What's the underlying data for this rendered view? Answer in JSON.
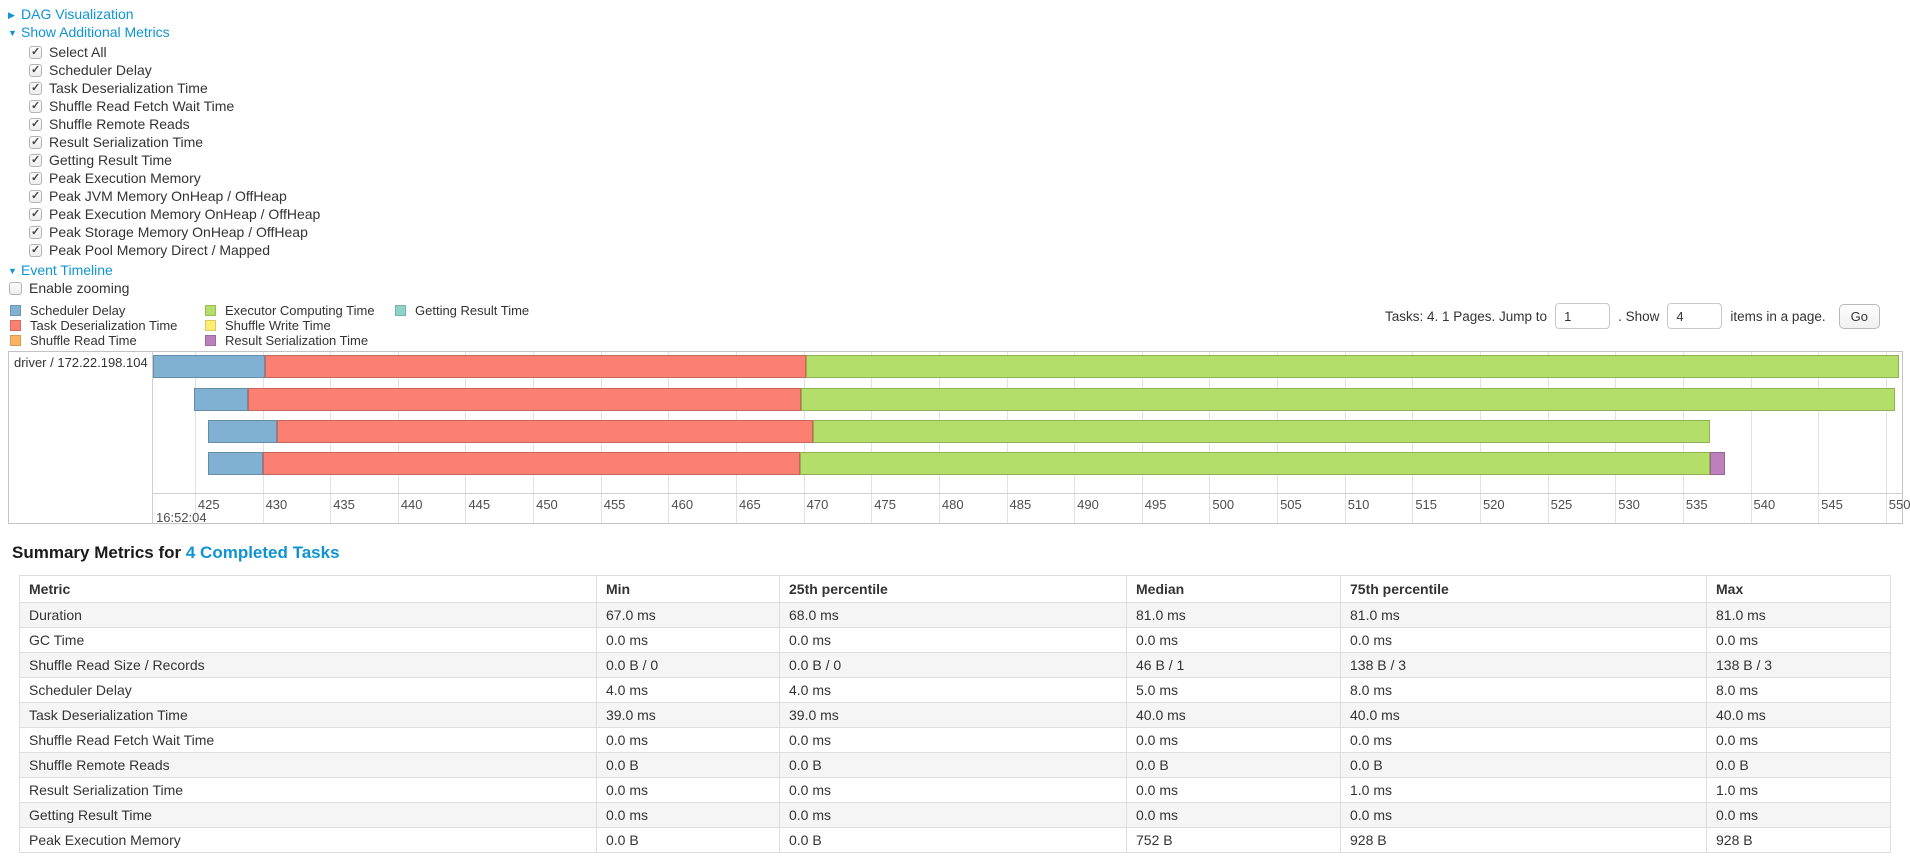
{
  "icons": {
    "collapsed": "▶",
    "expanded": "▼"
  },
  "toggles": {
    "dag_label": "DAG Visualization",
    "metrics_label": "Show Additional Metrics",
    "timeline_label": "Event Timeline",
    "enable_zooming_label": "Enable zooming"
  },
  "metrics_menu": {
    "items": [
      {
        "label": "Select All",
        "checked": true
      },
      {
        "label": "Scheduler Delay",
        "checked": true
      },
      {
        "label": "Task Deserialization Time",
        "checked": true
      },
      {
        "label": "Shuffle Read Fetch Wait Time",
        "checked": true
      },
      {
        "label": "Shuffle Remote Reads",
        "checked": true
      },
      {
        "label": "Result Serialization Time",
        "checked": true
      },
      {
        "label": "Getting Result Time",
        "checked": true
      },
      {
        "label": "Peak Execution Memory",
        "checked": true
      },
      {
        "label": "Peak JVM Memory OnHeap / OffHeap",
        "checked": true
      },
      {
        "label": "Peak Execution Memory OnHeap / OffHeap",
        "checked": true
      },
      {
        "label": "Peak Storage Memory OnHeap / OffHeap",
        "checked": true
      },
      {
        "label": "Peak Pool Memory Direct / Mapped",
        "checked": true
      }
    ]
  },
  "legend": {
    "columns": [
      [
        {
          "label": "Scheduler Delay",
          "color": "#80B1D3"
        },
        {
          "label": "Task Deserialization Time",
          "color": "#FB8072"
        },
        {
          "label": "Shuffle Read Time",
          "color": "#FDB462"
        }
      ],
      [
        {
          "label": "Executor Computing Time",
          "color": "#B3DE69"
        },
        {
          "label": "Shuffle Write Time",
          "color": "#FFED6F"
        },
        {
          "label": "Result Serialization Time",
          "color": "#BC80BD"
        }
      ],
      [
        {
          "label": "Getting Result Time",
          "color": "#8DD3C7"
        }
      ]
    ]
  },
  "pagination": {
    "prefix": "Tasks: 4. 1 Pages. Jump to",
    "jump_value": "1",
    "mid": ". Show",
    "show_value": "4",
    "suffix": "items in a page.",
    "go_label": "Go"
  },
  "chart_data": {
    "type": "timeline",
    "title": "Event Timeline",
    "colors": {
      "scheduler-delay": "#80B1D3",
      "task-deserialization": "#FB8072",
      "shuffle-read": "#FDB462",
      "executor-computing": "#B3DE69",
      "shuffle-write": "#FFED6F",
      "result-serialization": "#BC80BD",
      "getting-result": "#8DD3C7"
    },
    "x_axis": {
      "min": 421.9,
      "max": 551.2,
      "tick_start": 425,
      "tick_end": 550,
      "tick_step": 5,
      "major_label": "16:52:04",
      "unit": "ms"
    },
    "rows": [
      {
        "label": "driver / 172.22.198.104",
        "segments": [
          {
            "type": "scheduler-delay",
            "from": 421.9,
            "to": 430.2
          },
          {
            "type": "task-deserialization",
            "from": 430.2,
            "to": 470.2
          },
          {
            "type": "executor-computing",
            "from": 470.2,
            "to": 551.0
          }
        ]
      },
      {
        "label": "",
        "segments": [
          {
            "type": "scheduler-delay",
            "from": 424.9,
            "to": 428.9
          },
          {
            "type": "task-deserialization",
            "from": 428.9,
            "to": 469.8
          },
          {
            "type": "executor-computing",
            "from": 469.8,
            "to": 550.7
          }
        ]
      },
      {
        "label": "",
        "segments": [
          {
            "type": "scheduler-delay",
            "from": 426.0,
            "to": 431.1
          },
          {
            "type": "task-deserialization",
            "from": 431.1,
            "to": 470.7
          },
          {
            "type": "executor-computing",
            "from": 470.7,
            "to": 537.0
          }
        ]
      },
      {
        "label": "",
        "segments": [
          {
            "type": "scheduler-delay",
            "from": 426.0,
            "to": 430.0
          },
          {
            "type": "task-deserialization",
            "from": 430.0,
            "to": 469.7
          },
          {
            "type": "executor-computing",
            "from": 469.7,
            "to": 537.0
          },
          {
            "type": "result-serialization",
            "from": 537.0,
            "to": 538.1
          }
        ]
      }
    ]
  },
  "summary": {
    "title_prefix": "Summary Metrics for",
    "title_link": "4 Completed Tasks",
    "columns": [
      "Metric",
      "Min",
      "25th percentile",
      "Median",
      "75th percentile",
      "Max"
    ],
    "rows": [
      [
        "Duration",
        "67.0 ms",
        "68.0 ms",
        "81.0 ms",
        "81.0 ms",
        "81.0 ms"
      ],
      [
        "GC Time",
        "0.0 ms",
        "0.0 ms",
        "0.0 ms",
        "0.0 ms",
        "0.0 ms"
      ],
      [
        "Shuffle Read Size / Records",
        "0.0 B / 0",
        "0.0 B / 0",
        "46 B / 1",
        "138 B / 3",
        "138 B / 3"
      ],
      [
        "Scheduler Delay",
        "4.0 ms",
        "4.0 ms",
        "5.0 ms",
        "8.0 ms",
        "8.0 ms"
      ],
      [
        "Task Deserialization Time",
        "39.0 ms",
        "39.0 ms",
        "40.0 ms",
        "40.0 ms",
        "40.0 ms"
      ],
      [
        "Shuffle Read Fetch Wait Time",
        "0.0 ms",
        "0.0 ms",
        "0.0 ms",
        "0.0 ms",
        "0.0 ms"
      ],
      [
        "Shuffle Remote Reads",
        "0.0 B",
        "0.0 B",
        "0.0 B",
        "0.0 B",
        "0.0 B"
      ],
      [
        "Result Serialization Time",
        "0.0 ms",
        "0.0 ms",
        "0.0 ms",
        "1.0 ms",
        "1.0 ms"
      ],
      [
        "Getting Result Time",
        "0.0 ms",
        "0.0 ms",
        "0.0 ms",
        "0.0 ms",
        "0.0 ms"
      ],
      [
        "Peak Execution Memory",
        "0.0 B",
        "0.0 B",
        "752 B",
        "928 B",
        "928 B"
      ]
    ]
  }
}
